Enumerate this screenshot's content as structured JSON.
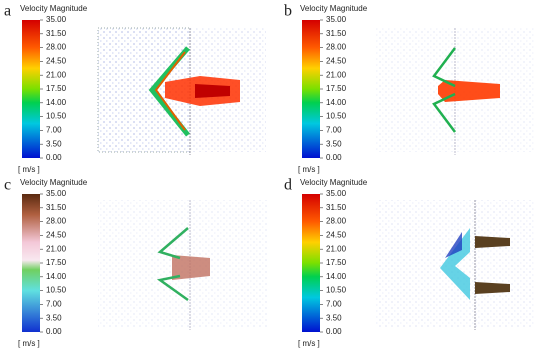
{
  "panels": [
    {
      "label": "a",
      "colorbar": {
        "title": "Velocity Magnitude",
        "ticks": [
          "35.00",
          "31.50",
          "28.00",
          "24.50",
          "21.00",
          "17.50",
          "14.00",
          "10.50",
          "7.00",
          "3.50",
          "0.00"
        ],
        "unit": "[ m/s ]"
      }
    },
    {
      "label": "b",
      "colorbar": {
        "title": "Velocity Magnitude",
        "ticks": [
          "35.00",
          "31.50",
          "28.00",
          "24.50",
          "21.00",
          "17.50",
          "14.00",
          "10.50",
          "7.00",
          "3.50",
          "0.00"
        ],
        "unit": "[ m/s ]"
      }
    },
    {
      "label": "c",
      "colorbar": {
        "title": "Velocity Magnitude",
        "ticks": [
          "35.00",
          "31.50",
          "28.00",
          "24.50",
          "21.00",
          "17.50",
          "14.00",
          "10.50",
          "7.00",
          "3.50",
          "0.00"
        ],
        "unit": "[ m/s ]"
      }
    },
    {
      "label": "d",
      "colorbar": {
        "title": "Velocity Magnitude",
        "ticks": [
          "35.00",
          "31.50",
          "28.00",
          "24.50",
          "21.00",
          "17.50",
          "14.00",
          "10.50",
          "7.00",
          "3.50",
          "0.00"
        ],
        "unit": "[ m/s ]"
      }
    }
  ]
}
